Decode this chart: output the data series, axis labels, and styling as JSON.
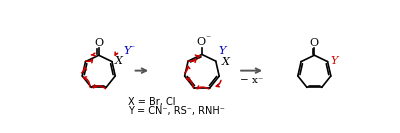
{
  "bg_color": "#ffffff",
  "black": "#000000",
  "red": "#cc0000",
  "blue": "#0000bb",
  "gray": "#555555",
  "eq1": "X = Br, Cl",
  "eq2": "Y = CN⁻, RS⁻, RNH⁻",
  "step_label": "− x⁻"
}
